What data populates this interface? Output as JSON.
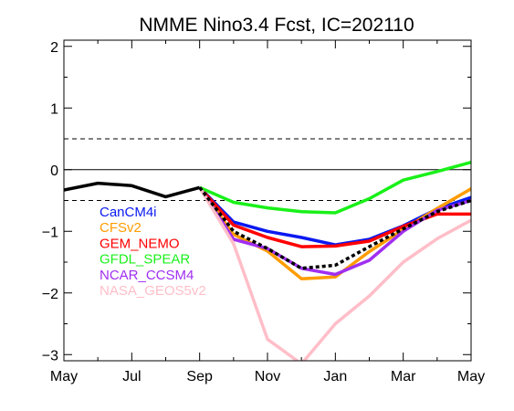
{
  "chart_data": {
    "type": "line",
    "title": "NMME Nino3.4 Fcst, IC=202110",
    "xlabel": "",
    "ylabel": "",
    "x_tick_labels": [
      "May",
      "Jul",
      "Sep",
      "Nov",
      "Jan",
      "Mar",
      "May"
    ],
    "x_tick_months": [
      0,
      2,
      4,
      6,
      8,
      10,
      12
    ],
    "xlim": [
      0,
      12
    ],
    "ylim": [
      -3.1,
      2.1
    ],
    "y_ticks": [
      2,
      1,
      0,
      -1,
      -2,
      -3
    ],
    "y_tick_labels": [
      "2",
      "1",
      "0",
      "−1",
      "−2",
      "−3"
    ],
    "reference_lines": [
      {
        "y": 0.5,
        "style": "dashed"
      },
      {
        "y": 0,
        "style": "solid"
      },
      {
        "y": -0.5,
        "style": "dashed"
      }
    ],
    "legend_position": "lower-left",
    "observed": {
      "color": "#000000",
      "x": [
        0,
        1,
        2,
        3,
        4
      ],
      "values": [
        -0.33,
        -0.22,
        -0.26,
        -0.44,
        -0.29
      ]
    },
    "series": [
      {
        "name": "CanCM4i",
        "color": "#0a19f0",
        "x": [
          4,
          5,
          6,
          7,
          8,
          9,
          10,
          11,
          12
        ],
        "values": [
          -0.29,
          -0.85,
          -1.0,
          -1.1,
          -1.22,
          -1.13,
          -0.91,
          -0.64,
          -0.45
        ]
      },
      {
        "name": "CFSv2",
        "color": "#ff9c00",
        "x": [
          4,
          5,
          6,
          7,
          8,
          9,
          10,
          11,
          12
        ],
        "values": [
          -0.29,
          -1.05,
          -1.32,
          -1.77,
          -1.74,
          -1.33,
          -0.97,
          -0.63,
          -0.31
        ]
      },
      {
        "name": "GEM_NEMO",
        "color": "#ff0000",
        "x": [
          4,
          5,
          6,
          7,
          8,
          9,
          10,
          11,
          12
        ],
        "values": [
          -0.29,
          -0.9,
          -1.1,
          -1.25,
          -1.24,
          -1.16,
          -0.92,
          -0.72,
          -0.72
        ]
      },
      {
        "name": "GFDL_SPEAR",
        "color": "#19f019",
        "x": [
          4,
          5,
          6,
          7,
          8,
          9,
          10,
          11,
          12
        ],
        "values": [
          -0.29,
          -0.53,
          -0.62,
          -0.68,
          -0.7,
          -0.47,
          -0.17,
          -0.03,
          0.12
        ]
      },
      {
        "name": "NCAR_CCSM4",
        "color": "#a02ff0",
        "x": [
          4,
          5,
          6,
          7,
          8,
          9,
          10,
          11,
          12
        ],
        "values": [
          -0.29,
          -1.13,
          -1.28,
          -1.6,
          -1.7,
          -1.47,
          -1.0,
          -0.66,
          -0.5
        ]
      },
      {
        "name": "NASA_GEOS5v2",
        "color": "#ffbec8",
        "x": [
          4,
          5,
          6,
          7,
          8,
          9,
          10,
          11,
          12
        ],
        "values": [
          -0.29,
          -1.2,
          -2.75,
          -3.15,
          -2.5,
          -2.05,
          -1.5,
          -1.12,
          -0.82
        ]
      },
      {
        "name": "",
        "color": "#000000",
        "dashed": true,
        "x": [
          4,
          5,
          6,
          7,
          8,
          9,
          10,
          11,
          12
        ],
        "values": [
          -0.29,
          -1.0,
          -1.28,
          -1.6,
          -1.55,
          -1.25,
          -0.96,
          -0.68,
          -0.5
        ]
      }
    ]
  }
}
